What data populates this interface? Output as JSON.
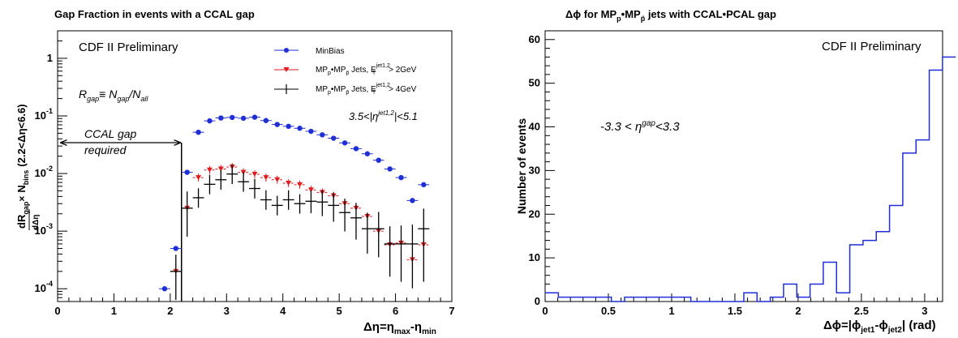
{
  "chart_data": [
    {
      "type": "scatter",
      "title": "Gap Fraction in events with a CCAL gap",
      "watermark": "CDF II Preliminary",
      "ylabel": "dRgap/dΔη × Nbins (2.2<Δη<6.6)",
      "ylabel_parts": {
        "d_top": "dR",
        "gap_sub": "gap",
        "times": "×",
        "n": "N",
        "bins_sub": "bins",
        "range": "(2.2<Δη<6.6)",
        "d_bottom": "dΔη"
      },
      "xlabel_parts": {
        "main": "Δη=η",
        "max_sub": "max",
        "minus": "-η",
        "min_sub": "min"
      },
      "xlim": [
        0,
        7
      ],
      "ylim": [
        6e-05,
        3
      ],
      "yscale": "log",
      "x_ticks": [
        "0",
        "1",
        "2",
        "3",
        "4",
        "5",
        "6",
        "7"
      ],
      "y_ticks": [
        {
          "base": "10",
          "exp": "-4",
          "value": 0.0001
        },
        {
          "base": "10",
          "exp": "-3",
          "value": 0.001
        },
        {
          "base": "10",
          "exp": "-2",
          "value": 0.01
        },
        {
          "base": "10",
          "exp": "-1",
          "value": 0.1
        },
        {
          "base": "1",
          "exp": "",
          "value": 1
        }
      ],
      "annotations": {
        "rgap": {
          "r": "R",
          "r_sub": "gap",
          "eq": "≡ N",
          "n_sub": "gap",
          "slash": "/N",
          "all_sub": "all"
        },
        "eta_range": {
          "pre": "3.5<|",
          "eta": "η",
          "sup": "jet1,2",
          "post": "|<5.1"
        },
        "ccal_line1": "CCAL gap",
        "ccal_line2": "required"
      },
      "legend_position": "top-center",
      "legend": [
        {
          "main": "MinBias",
          "rest": "",
          "sup": "",
          "tail": ""
        },
        {
          "main": "MP",
          "sub1": "p",
          "mid": "•MP",
          "sub2": "p̄",
          "rest": " Jets, E",
          "sup": "jet1,2",
          "sub3": "T",
          "tail": "> 2GeV"
        },
        {
          "main": "MP",
          "sub1": "p",
          "mid": "•MP",
          "sub2": "p̄",
          "rest": " Jets, E",
          "sup": "jet1,2",
          "sub3": "T",
          "tail": "> 4GeV"
        }
      ],
      "colors": {
        "minbias": "#1f2fd8",
        "jets2": "#e31a1c",
        "jets4": "#000000"
      },
      "series": [
        {
          "name": "MinBias",
          "marker": "circle",
          "x": [
            1.9,
            2.1,
            2.3,
            2.5,
            2.7,
            2.9,
            3.1,
            3.3,
            3.5,
            3.7,
            3.9,
            4.1,
            4.3,
            4.5,
            4.7,
            4.9,
            5.1,
            5.3,
            5.5,
            5.7,
            5.9,
            6.1,
            6.3,
            6.5
          ],
          "y": [
            0.0001,
            0.0005,
            0.0105,
            0.052,
            0.082,
            0.092,
            0.094,
            0.091,
            0.095,
            0.083,
            0.071,
            0.066,
            0.061,
            0.054,
            0.047,
            0.041,
            0.034,
            0.027,
            0.022,
            0.017,
            0.012,
            0.0085,
            0.0034,
            0.0064
          ]
        },
        {
          "name": "MP•MP Jets, ET>2GeV",
          "marker": "triangle-down",
          "x": [
            2.1,
            2.3,
            2.5,
            2.7,
            2.9,
            3.1,
            3.3,
            3.5,
            3.7,
            3.9,
            4.1,
            4.3,
            4.5,
            4.7,
            4.9,
            5.1,
            5.3,
            5.5,
            5.7,
            5.9,
            6.1,
            6.3,
            6.5
          ],
          "y": [
            0.0002,
            0.0025,
            0.0085,
            0.0115,
            0.012,
            0.013,
            0.0105,
            0.0097,
            0.0085,
            0.0078,
            0.0068,
            0.0064,
            0.0052,
            0.0047,
            0.0041,
            0.003,
            0.0025,
            0.0018,
            0.001,
            0.00058,
            0.00062,
            0.00032,
            0.00058
          ]
        },
        {
          "name": "MP•MP Jets, ET>4GeV",
          "marker": "cross",
          "x": [
            2.1,
            2.3,
            2.5,
            2.7,
            2.9,
            3.1,
            3.3,
            3.5,
            3.7,
            3.9,
            4.1,
            4.3,
            4.5,
            4.7,
            4.9,
            5.1,
            5.3,
            5.5,
            5.7,
            5.9,
            6.1,
            6.3,
            6.5
          ],
          "y": [
            0.0002,
            0.0025,
            0.0038,
            0.0065,
            0.0078,
            0.0098,
            0.0072,
            0.0055,
            0.0035,
            0.0028,
            0.0035,
            0.003,
            0.0033,
            0.0032,
            0.0028,
            0.0021,
            0.0017,
            0.0011,
            0.0011,
            0.0006,
            0.0006,
            0.0006,
            0.0011
          ]
        }
      ]
    },
    {
      "type": "bar",
      "style": "step-histogram",
      "title_parts": {
        "pre": "Δϕ for MP",
        "sub1": "p",
        "mid": "•MP",
        "sub2": "p̄",
        "post": "  jets with CCAL•PCAL  gap"
      },
      "watermark": "CDF II Preliminary",
      "ylabel": "Number of events",
      "xlabel_parts": {
        "main": "Δϕ=|ϕ",
        "sub1": "jet1",
        "minus": "-ϕ",
        "sub2": "jet2",
        "post": "| (rad)"
      },
      "annotation": {
        "pre": "-3.3 < η",
        "sup": "gap",
        "post": "<3.3"
      },
      "xlim": [
        0,
        3.1416
      ],
      "ylim": [
        0,
        62
      ],
      "x_ticks": [
        "0",
        "0.5",
        "1",
        "1.5",
        "2",
        "2.5",
        "3"
      ],
      "y_ticks": [
        "0",
        "10",
        "20",
        "30",
        "40",
        "50",
        "60"
      ],
      "color": "#1f2fd8",
      "bin_width": 0.1047,
      "values": [
        2,
        1,
        1,
        1,
        1,
        0,
        1,
        1,
        1,
        1,
        1,
        0,
        0,
        0,
        0,
        2,
        0,
        1,
        4,
        1,
        4,
        9,
        2,
        13,
        14,
        16,
        22,
        34,
        37,
        53,
        56
      ]
    }
  ]
}
